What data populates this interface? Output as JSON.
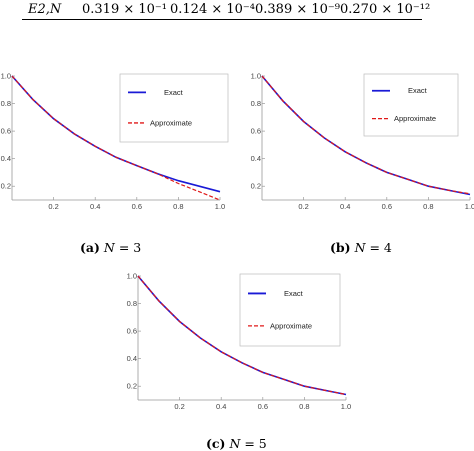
{
  "table": {
    "row_label": "E2,N",
    "values": [
      "0.319 × 10⁻¹",
      "0.124 × 10⁻⁴",
      "0.389 × 10⁻⁹",
      "0.270 × 10⁻¹²"
    ]
  },
  "captions": [
    {
      "tag": "(a)",
      "var": "N",
      "rest": " = 3"
    },
    {
      "tag": "(b)",
      "var": "N",
      "rest": " = 4"
    },
    {
      "tag": "(c)",
      "var": "N",
      "rest": " = 5"
    }
  ],
  "colors": {
    "exact": "#1a1ad6",
    "approximate": "#e01818",
    "axis": "#999999"
  },
  "chart_data": [
    {
      "type": "line",
      "xlim": [
        0,
        1.0
      ],
      "ylim": [
        0.1,
        1.0
      ],
      "xticks": [
        0.2,
        0.4,
        0.6,
        0.8,
        1.0
      ],
      "xtick_labels": [
        "0.2",
        "0.4",
        "0.6",
        "0.8",
        "1.0"
      ],
      "yticks": [
        0.2,
        0.4,
        0.6,
        0.8,
        1.0
      ],
      "ytick_labels": [
        "0.2",
        "0.4",
        "0.6",
        "0.8",
        "1.0"
      ],
      "legend": {
        "placement": "top-right"
      },
      "series": [
        {
          "name": "Exact",
          "style": "solid",
          "x": [
            0,
            0.1,
            0.2,
            0.3,
            0.4,
            0.5,
            0.6,
            0.7,
            0.8,
            0.9,
            1.0
          ],
          "y": [
            1.0,
            0.83,
            0.69,
            0.58,
            0.49,
            0.41,
            0.35,
            0.29,
            0.24,
            0.2,
            0.16
          ]
        },
        {
          "name": "Approximate",
          "style": "dashed",
          "x": [
            0,
            0.1,
            0.2,
            0.3,
            0.4,
            0.5,
            0.6,
            0.7,
            0.8,
            0.9,
            1.0
          ],
          "y": [
            1.0,
            0.83,
            0.69,
            0.58,
            0.49,
            0.41,
            0.35,
            0.29,
            0.22,
            0.16,
            0.1
          ]
        }
      ]
    },
    {
      "type": "line",
      "xlim": [
        0,
        1.0
      ],
      "ylim": [
        0.1,
        1.0
      ],
      "xticks": [
        0.2,
        0.4,
        0.6,
        0.8,
        1.0
      ],
      "xtick_labels": [
        "0.2",
        "0.4",
        "0.6",
        "0.8",
        "1.0"
      ],
      "yticks": [
        0.2,
        0.4,
        0.6,
        0.8,
        1.0
      ],
      "ytick_labels": [
        "0.2",
        "0.4",
        "0.6",
        "0.8",
        "1.0"
      ],
      "legend": {
        "placement": "top-right"
      },
      "series": [
        {
          "name": "Exact",
          "style": "solid",
          "x": [
            0,
            0.1,
            0.2,
            0.3,
            0.4,
            0.5,
            0.6,
            0.7,
            0.8,
            0.9,
            1.0
          ],
          "y": [
            1.0,
            0.82,
            0.67,
            0.55,
            0.45,
            0.37,
            0.3,
            0.25,
            0.2,
            0.17,
            0.14
          ]
        },
        {
          "name": "Approximate",
          "style": "dashed",
          "x": [
            0,
            0.1,
            0.2,
            0.3,
            0.4,
            0.5,
            0.6,
            0.7,
            0.8,
            0.9,
            1.0
          ],
          "y": [
            1.0,
            0.82,
            0.67,
            0.55,
            0.45,
            0.37,
            0.3,
            0.25,
            0.2,
            0.17,
            0.145
          ]
        }
      ]
    },
    {
      "type": "line",
      "xlim": [
        0,
        1.0
      ],
      "ylim": [
        0.1,
        1.0
      ],
      "xticks": [
        0.2,
        0.4,
        0.6,
        0.8,
        1.0
      ],
      "xtick_labels": [
        "0.2",
        "0.4",
        "0.6",
        "0.8",
        "1.0"
      ],
      "yticks": [
        0.2,
        0.4,
        0.6,
        0.8,
        1.0
      ],
      "ytick_labels": [
        "0.2",
        "0.4",
        "0.6",
        "0.8",
        "1.0"
      ],
      "legend": {
        "placement": "top-right"
      },
      "series": [
        {
          "name": "Exact",
          "style": "solid",
          "x": [
            0,
            0.1,
            0.2,
            0.3,
            0.4,
            0.5,
            0.6,
            0.7,
            0.8,
            0.9,
            1.0
          ],
          "y": [
            1.0,
            0.82,
            0.67,
            0.55,
            0.45,
            0.37,
            0.3,
            0.25,
            0.2,
            0.17,
            0.14
          ]
        },
        {
          "name": "Approximate",
          "style": "dashed",
          "x": [
            0,
            0.1,
            0.2,
            0.3,
            0.4,
            0.5,
            0.6,
            0.7,
            0.8,
            0.9,
            1.0
          ],
          "y": [
            1.0,
            0.82,
            0.67,
            0.55,
            0.45,
            0.37,
            0.3,
            0.25,
            0.2,
            0.17,
            0.14
          ]
        }
      ]
    }
  ]
}
